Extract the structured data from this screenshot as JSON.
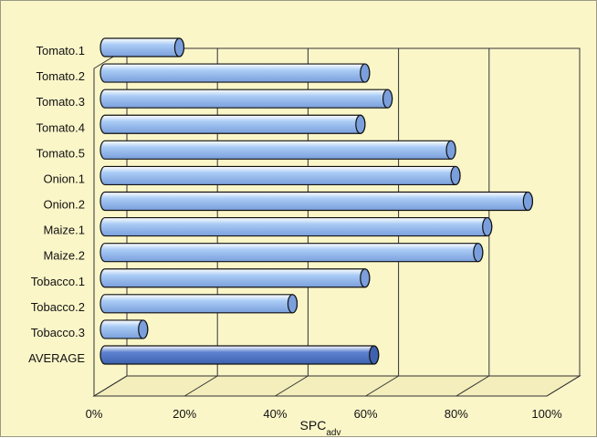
{
  "chart_data": {
    "type": "bar",
    "orientation": "horizontal",
    "style": "3d-cylinder",
    "categories": [
      "Tomato.1",
      "Tomato.2",
      "Tomato.3",
      "Tomato.4",
      "Tomato.5",
      "Onion.1",
      "Onion.2",
      "Maize.1",
      "Maize.2",
      "Tobacco.1",
      "Tobacco.2",
      "Tobacco.3",
      "AVERAGE"
    ],
    "values": [
      0.14,
      0.55,
      0.6,
      0.54,
      0.74,
      0.75,
      0.91,
      0.82,
      0.8,
      0.55,
      0.39,
      0.06,
      0.57
    ],
    "highlight_category": "AVERAGE",
    "xlim": [
      0,
      1
    ],
    "xticks": [
      0,
      0.2,
      0.4,
      0.6,
      0.8,
      1.0
    ],
    "xtick_labels": [
      "0%",
      "20%",
      "40%",
      "60%",
      "80%",
      "100%"
    ],
    "xlabel_main": "SPC",
    "xlabel_subscript": "adv",
    "ylabel": "",
    "title": "",
    "grid": true,
    "legend": "none",
    "colors": {
      "bar": "#a9cbf5",
      "bar_dark": "#7a9fdc",
      "highlight": "#5d82cf",
      "highlight_dark": "#3e62b0",
      "plot_background": "#fbf6c8",
      "gridline": "#333333"
    }
  }
}
